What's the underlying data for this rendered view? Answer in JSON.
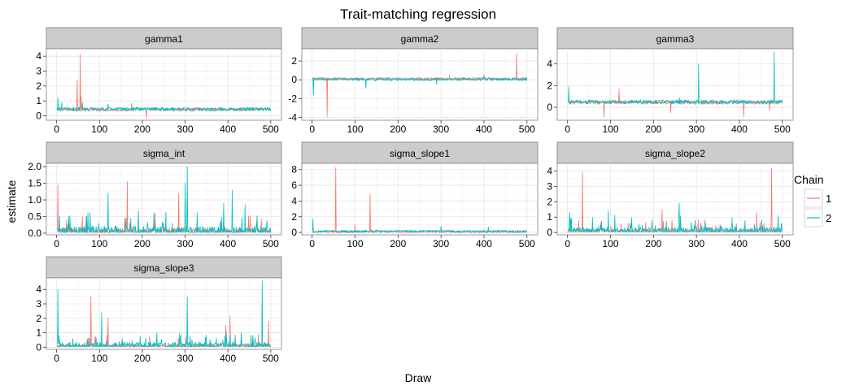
{
  "chart_data": {
    "type": "line",
    "title": "Trait-matching regression",
    "xlabel": "Draw",
    "ylabel": "estimate",
    "legend": {
      "title": "Chain",
      "placement": "right",
      "entries": [
        {
          "label": "1",
          "color": "#F8766D"
        },
        {
          "label": "2",
          "color": "#00BFC4"
        }
      ]
    },
    "x_range": [
      1,
      500
    ],
    "x_ticks": [
      0,
      100,
      200,
      300,
      400,
      500
    ],
    "grid": true,
    "facets": [
      {
        "name": "gamma1",
        "ylim": [
          -0.3,
          4.5
        ],
        "y_ticks": [
          0,
          1,
          2,
          3,
          4
        ],
        "series": [
          {
            "chain": "1",
            "baseline": 0.42,
            "noise": 0.12,
            "spikes": [
              [
                55,
                4.15
              ],
              [
                48,
                2.4
              ],
              [
                57,
                1.3
              ],
              [
                175,
                0.85
              ],
              [
                210,
                -0.15
              ]
            ]
          },
          {
            "chain": "2",
            "baseline": 0.45,
            "noise": 0.12,
            "spikes": [
              [
                3,
                1.25
              ],
              [
                12,
                0.9
              ],
              [
                60,
                0.9
              ],
              [
                120,
                0.8
              ]
            ]
          }
        ]
      },
      {
        "name": "gamma2",
        "ylim": [
          -4.3,
          3.3
        ],
        "y_ticks": [
          -4,
          -2,
          0,
          2
        ],
        "series": [
          {
            "chain": "1",
            "baseline": 0.1,
            "noise": 0.15,
            "spikes": [
              [
                35,
                -3.9
              ],
              [
                476,
                2.8
              ],
              [
                320,
                0.5
              ]
            ]
          },
          {
            "chain": "2",
            "baseline": 0.05,
            "noise": 0.15,
            "spikes": [
              [
                3,
                -1.6
              ],
              [
                125,
                -0.9
              ],
              [
                290,
                -0.5
              ],
              [
                400,
                0.5
              ]
            ]
          }
        ]
      },
      {
        "name": "gamma3",
        "ylim": [
          -1.2,
          5.4
        ],
        "y_ticks": [
          0,
          2,
          4
        ],
        "series": [
          {
            "chain": "1",
            "baseline": 0.45,
            "noise": 0.18,
            "spikes": [
              [
                85,
                -0.9
              ],
              [
                120,
                1.7
              ],
              [
                240,
                -0.5
              ],
              [
                410,
                -0.9
              ],
              [
                470,
                -0.3
              ]
            ]
          },
          {
            "chain": "2",
            "baseline": 0.5,
            "noise": 0.18,
            "spikes": [
              [
                3,
                1.9
              ],
              [
                305,
                4.0
              ],
              [
                481,
                5.1
              ],
              [
                260,
                0.9
              ]
            ]
          }
        ]
      },
      {
        "name": "sigma_int",
        "ylim": [
          -0.05,
          2.1
        ],
        "y_ticks": [
          0.0,
          0.5,
          1.0,
          1.5,
          2.0
        ],
        "series": [
          {
            "chain": "1",
            "baseline": 0.1,
            "noise": 0.12,
            "spikes": [
              [
                3,
                1.45
              ],
              [
                165,
                1.55
              ],
              [
                285,
                1.2
              ],
              [
                60,
                0.5
              ],
              [
                230,
                0.6
              ]
            ]
          },
          {
            "chain": "2",
            "baseline": 0.12,
            "noise": 0.15,
            "spikes": [
              [
                305,
                2.0
              ],
              [
                300,
                1.5
              ],
              [
                120,
                1.2
              ],
              [
                410,
                1.3
              ],
              [
                390,
                0.9
              ],
              [
                440,
                0.85
              ]
            ]
          }
        ]
      },
      {
        "name": "sigma_slope1",
        "ylim": [
          -0.3,
          8.8
        ],
        "y_ticks": [
          0,
          2,
          4,
          6,
          8
        ],
        "series": [
          {
            "chain": "1",
            "baseline": 0.1,
            "noise": 0.15,
            "spikes": [
              [
                55,
                8.25
              ],
              [
                135,
                4.8
              ],
              [
                100,
                1.0
              ]
            ]
          },
          {
            "chain": "2",
            "baseline": 0.15,
            "noise": 0.15,
            "spikes": [
              [
                2,
                1.7
              ],
              [
                300,
                0.8
              ],
              [
                410,
                0.7
              ]
            ]
          }
        ]
      },
      {
        "name": "sigma_slope2",
        "ylim": [
          -0.15,
          4.5
        ],
        "y_ticks": [
          0,
          1,
          2,
          3,
          4
        ],
        "series": [
          {
            "chain": "1",
            "baseline": 0.15,
            "noise": 0.2,
            "spikes": [
              [
                35,
                3.9
              ],
              [
                475,
                4.2
              ],
              [
                220,
                1.5
              ],
              [
                440,
                1.3
              ]
            ]
          },
          {
            "chain": "2",
            "baseline": 0.2,
            "noise": 0.25,
            "spikes": [
              [
                5,
                1.3
              ],
              [
                260,
                1.9
              ],
              [
                95,
                1.4
              ],
              [
                490,
                1.1
              ]
            ]
          }
        ]
      },
      {
        "name": "sigma_slope3",
        "ylim": [
          -0.15,
          4.8
        ],
        "y_ticks": [
          0,
          1,
          2,
          3,
          4
        ],
        "series": [
          {
            "chain": "1",
            "baseline": 0.15,
            "noise": 0.2,
            "spikes": [
              [
                80,
                3.5
              ],
              [
                120,
                2.0
              ],
              [
                405,
                2.2
              ],
              [
                395,
                1.5
              ],
              [
                495,
                1.8
              ]
            ]
          },
          {
            "chain": "2",
            "baseline": 0.2,
            "noise": 0.25,
            "spikes": [
              [
                3,
                4.0
              ],
              [
                105,
                2.4
              ],
              [
                305,
                3.5
              ],
              [
                480,
                4.6
              ]
            ]
          }
        ]
      }
    ]
  }
}
